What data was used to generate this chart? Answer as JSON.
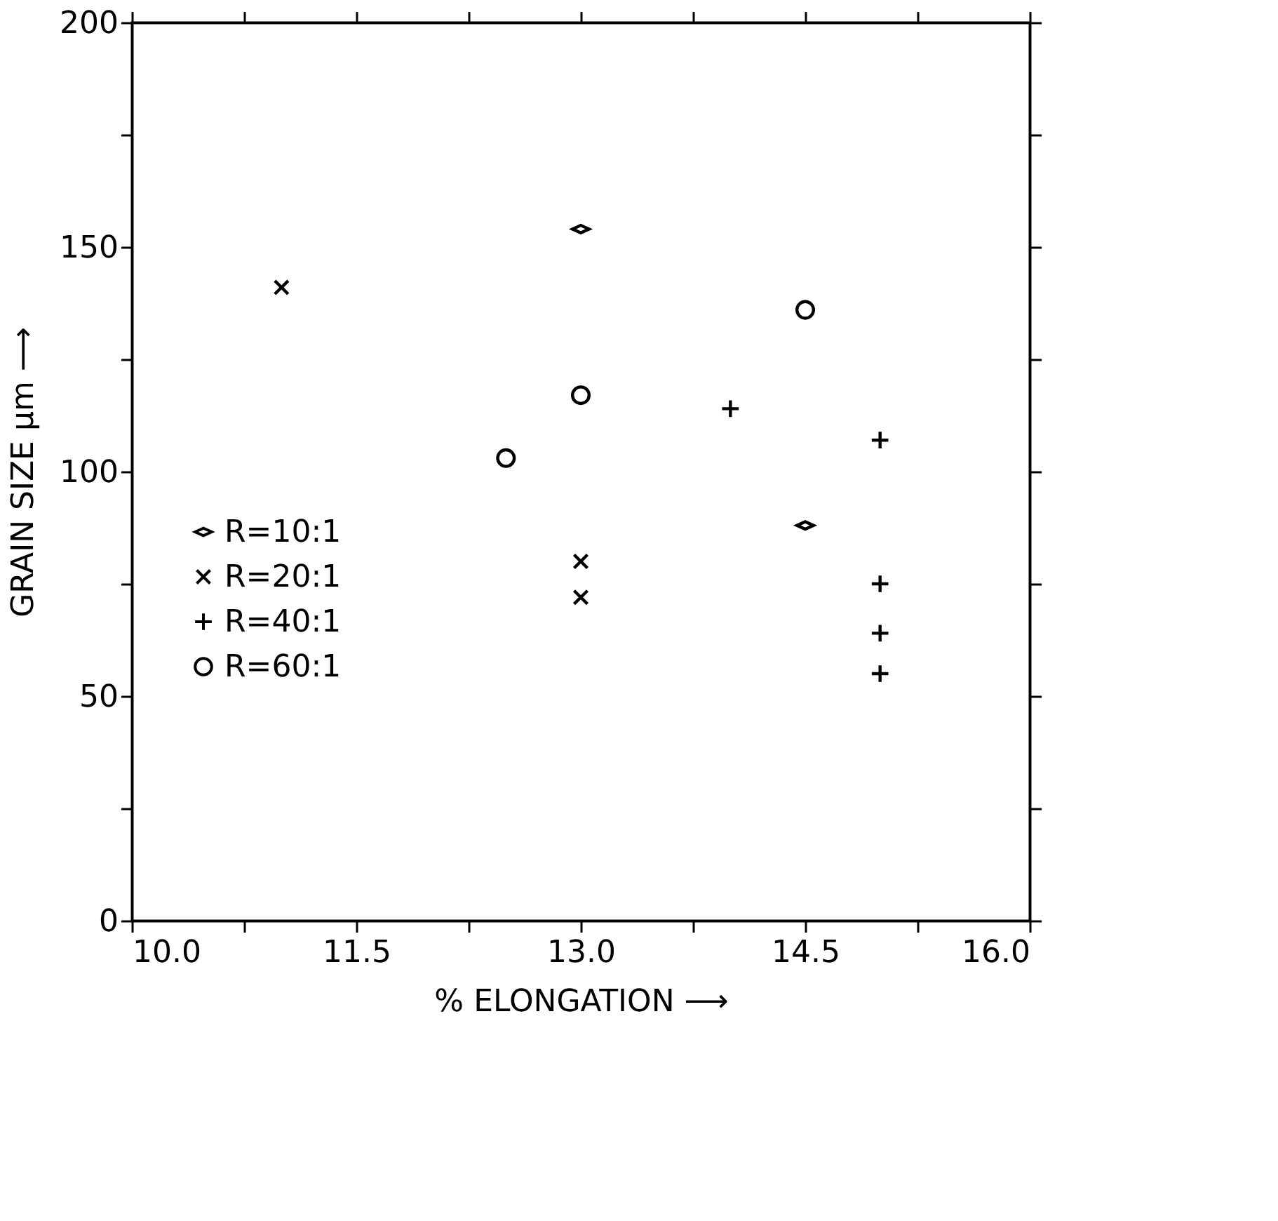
{
  "chart_data": {
    "type": "scatter",
    "xlabel": "% ELONGATION ⟶",
    "ylabel": "GRAIN SIZE μm ⟶",
    "xlim": [
      10,
      16
    ],
    "ylim": [
      0,
      200
    ],
    "xticks": [
      {
        "value": 10,
        "label": "10.0"
      },
      {
        "value": 10.75,
        "label": null
      },
      {
        "value": 11.5,
        "label": "11.5"
      },
      {
        "value": 12.25,
        "label": null
      },
      {
        "value": 13,
        "label": "13.0"
      },
      {
        "value": 13.75,
        "label": null
      },
      {
        "value": 14.5,
        "label": "14.5"
      },
      {
        "value": 15.25,
        "label": null
      },
      {
        "value": 16,
        "label": "16.0"
      }
    ],
    "yticks": [
      0,
      {
        "value": 25,
        "label": null
      },
      50,
      {
        "value": 75,
        "label": null
      },
      100,
      {
        "value": 125,
        "label": null
      },
      150,
      {
        "value": 175,
        "label": null
      },
      200
    ],
    "grid": false,
    "legend": "left",
    "series": [
      {
        "name": "R=10:1",
        "color": "#000000",
        "marker": "diamond",
        "x": [
          13.0,
          14.5
        ],
        "values": [
          154,
          88
        ]
      },
      {
        "name": "R=20:1",
        "color": "#000000",
        "marker": "x",
        "x": [
          11.0,
          13.0,
          13.0
        ],
        "values": [
          141,
          80,
          72
        ]
      },
      {
        "name": "R=40:1",
        "color": "#000000",
        "marker": "cross",
        "x": [
          14.0,
          15.0,
          15.0,
          15.0,
          15.0
        ],
        "values": [
          114,
          107,
          75,
          64,
          55
        ]
      },
      {
        "name": "R=60:1",
        "color": "#000000",
        "marker": "circle",
        "x": [
          12.5,
          13.0,
          14.5
        ],
        "values": [
          103,
          117,
          136
        ]
      }
    ]
  }
}
